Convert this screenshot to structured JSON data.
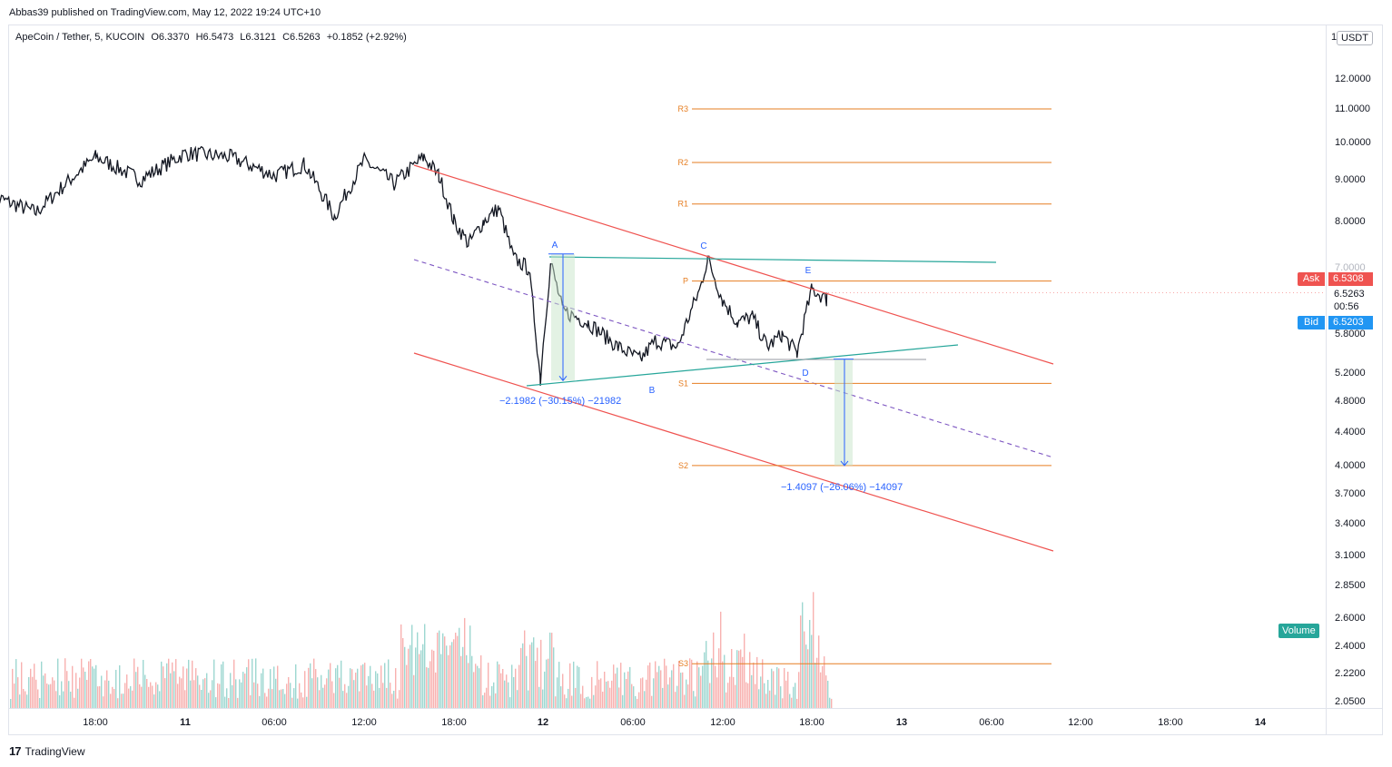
{
  "header": {
    "published": "Abbas39 published on TradingView.com, May 12, 2022 19:24 UTC+10"
  },
  "legend": {
    "symbol": "ApeCoin / Tether, 5, KUCOIN",
    "open": "O6.3370",
    "high": "H6.5473",
    "low": "L6.3121",
    "close": "C6.5263",
    "change": "+0.1852 (+2.92%)"
  },
  "price_axis": {
    "currency": "USDT",
    "currency_cut": "1",
    "ticks": [
      "12.0000",
      "11.0000",
      "10.0000",
      "9.0000",
      "8.0000",
      "7.0000",
      "6.5263",
      "00:56",
      "5.8000",
      "5.2000",
      "4.8000",
      "4.4000",
      "4.0000",
      "3.7000",
      "3.4000",
      "3.1000",
      "2.8500",
      "2.6000",
      "2.4000",
      "2.2200",
      "2.0500"
    ]
  },
  "quote": {
    "ask_label": "Ask",
    "ask_value": "6.5308",
    "bid_label": "Bid",
    "bid_value": "6.5203",
    "last_price": "6.5263",
    "countdown": "00:56"
  },
  "time_axis": {
    "ticks": [
      "18:00",
      "11",
      "06:00",
      "12:00",
      "18:00",
      "12",
      "06:00",
      "12:00",
      "18:00",
      "13",
      "06:00",
      "12:00",
      "18:00",
      "14"
    ]
  },
  "volume_badge": "Volume",
  "footer": {
    "brand": "TradingView",
    "logo": "17"
  },
  "annotations": {
    "waves": [
      "A",
      "B",
      "C",
      "D",
      "E"
    ],
    "pivots": [
      "R3",
      "R2",
      "R1",
      "P",
      "S1",
      "S2",
      "S3"
    ],
    "measure1": "−2.1982 (−30.15%) −21982",
    "measure2": "−1.4097 (−26.06%) −14097"
  },
  "colors": {
    "channel": "#ef5350",
    "triangle": "#26a69a",
    "midline": "#7e57c2",
    "pivot": "#e67e22",
    "measure": "#2962ff",
    "vol_up": "#26a69a",
    "vol_down": "#ef5350"
  },
  "chart_data": {
    "type": "candlestick",
    "title": "ApeCoin / Tether, 5, KUCOIN",
    "y_scale": "log",
    "ylim": [
      2.05,
      12.0
    ],
    "x_tick_labels": [
      "18:00",
      "11",
      "06:00",
      "12:00",
      "18:00",
      "12",
      "06:00",
      "12:00",
      "18:00",
      "13",
      "06:00",
      "12:00",
      "18:00",
      "14"
    ],
    "price_series": {
      "name": "ApeCoin / Tether",
      "x": [
        "10 18:00",
        "11 00:00",
        "11 06:00",
        "11 12:00",
        "11 16:00",
        "11 18:00",
        "11 21:00",
        "11 23:00",
        "12 03:00",
        "12 06:00",
        "12 09:00",
        "12 11:00",
        "12 13:00",
        "12 15:00",
        "12 17:00",
        "12 18:00",
        "12 19:00"
      ],
      "close": [
        8.7,
        9.6,
        9.2,
        9.4,
        9.5,
        8.0,
        8.1,
        5.2,
        6.3,
        5.6,
        5.6,
        7.1,
        6.0,
        5.5,
        5.5,
        6.3,
        6.53
      ]
    },
    "volume_series": {
      "name": "Volume"
    },
    "pivot_levels": {
      "R3": 11.0,
      "R2": 9.45,
      "R1": 8.4,
      "P": 6.75,
      "S1": 5.05,
      "S2": 4.0,
      "S3": 2.28
    },
    "measurements": [
      {
        "label": "−2.1982 (−30.15%) −21982",
        "from": 7.29,
        "to": 5.09
      },
      {
        "label": "−1.4097 (−26.06%) −14097",
        "from": 5.41,
        "to": 4.0
      }
    ]
  }
}
